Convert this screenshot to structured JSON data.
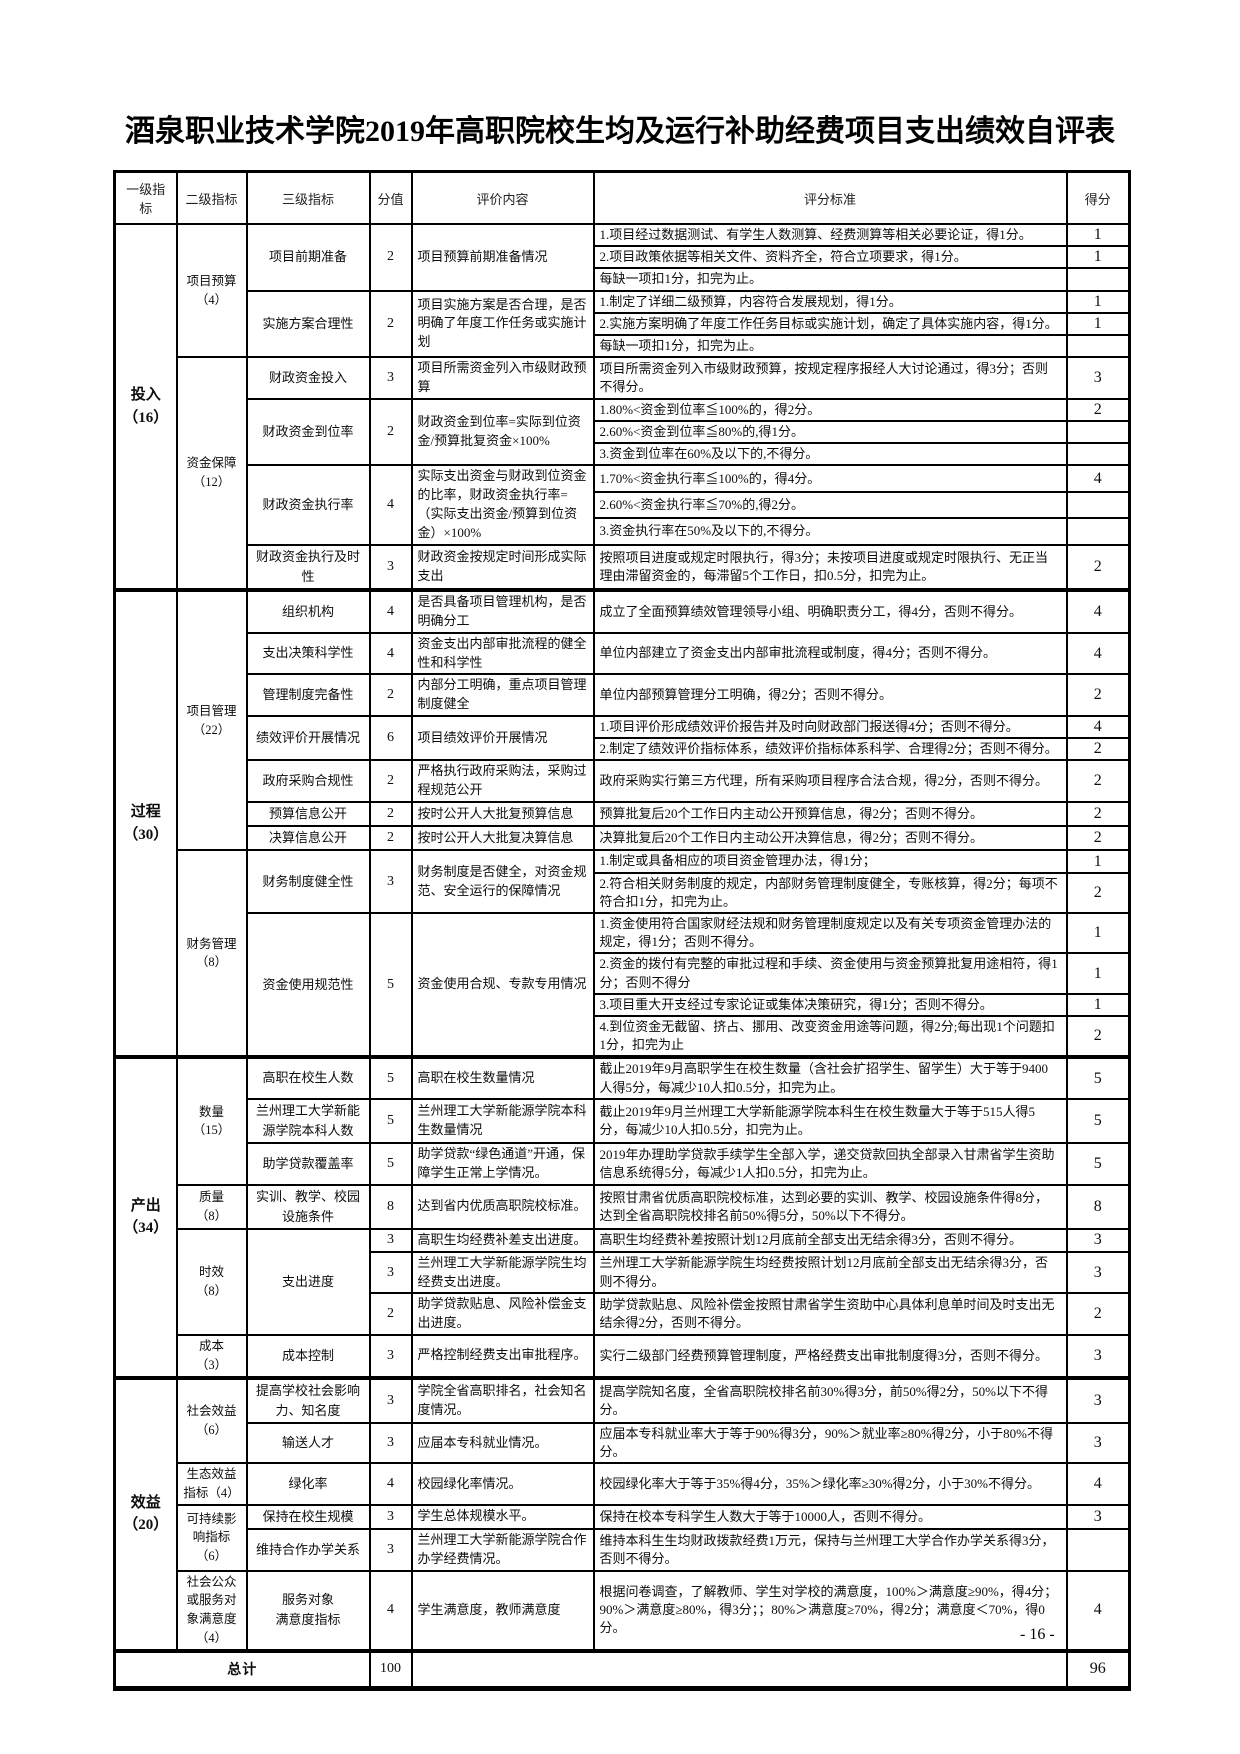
{
  "page": {
    "title": "酒泉职业技术学院2019年高职院校生均及运行补助经费项目支出绩效自评表",
    "page_number": "- 16 -"
  },
  "table": {
    "headers": [
      "一级指标",
      "二级指标",
      "三级指标",
      "分值",
      "评价内容",
      "评分标准",
      "得分"
    ],
    "total_score": "96",
    "total_points": "100",
    "rows": [
      {
        "cells": [
          {
            "t": "投入\n（16）",
            "rs": 14,
            "cls": "l1"
          },
          {
            "t": "项目预算\n（4）",
            "rs": 6,
            "cls": "l2"
          },
          {
            "t": "项目前期准备",
            "rs": 3,
            "cls": "l3"
          },
          {
            "t": "2",
            "rs": 3,
            "cls": "val"
          },
          {
            "t": "项目预算前期准备情况",
            "rs": 3,
            "cls": "content"
          },
          {
            "t": "1.项目经过数据测试、有学生人数测算、经费测算等相关必要论证，得1分。",
            "cls": "std"
          },
          {
            "t": "1",
            "cls": "score"
          }
        ]
      },
      {
        "cells": [
          {
            "t": "2.项目政策依据等相关文件、资料齐全，符合立项要求，得1分。",
            "cls": "std"
          },
          {
            "t": "1",
            "cls": "score"
          }
        ]
      },
      {
        "cells": [
          {
            "t": "每缺一项扣1分，扣完为止。",
            "cls": "std"
          },
          {
            "t": "",
            "cls": "score"
          }
        ]
      },
      {
        "cells": [
          {
            "t": "实施方案合理性",
            "rs": 3,
            "cls": "l3"
          },
          {
            "t": "2",
            "rs": 3,
            "cls": "val"
          },
          {
            "t": "项目实施方案是否合理，是否明确了年度工作任务或实施计划",
            "rs": 3,
            "cls": "content"
          },
          {
            "t": "1.制定了详细二级预算，内容符合发展规划，得1分。",
            "cls": "std"
          },
          {
            "t": "1",
            "cls": "score"
          }
        ]
      },
      {
        "cells": [
          {
            "t": "2.实施方案明确了年度工作任务目标或实施计划，确定了具体实施内容，得1分。",
            "cls": "std"
          },
          {
            "t": "1",
            "cls": "score"
          }
        ]
      },
      {
        "cells": [
          {
            "t": "每缺一项扣1分，扣完为止。",
            "cls": "std"
          },
          {
            "t": "",
            "cls": "score"
          }
        ]
      },
      {
        "cells": [
          {
            "t": "资金保障\n（12）",
            "rs": 8,
            "cls": "l2"
          },
          {
            "t": "财政资金投入",
            "cls": "l3"
          },
          {
            "t": "3",
            "cls": "val"
          },
          {
            "t": "项目所需资金列入市级财政预算",
            "cls": "content"
          },
          {
            "t": "项目所需资金列入市级财政预算，按规定程序报经人大讨论通过，得3分；否则不得分。",
            "cls": "std"
          },
          {
            "t": "3",
            "cls": "score"
          }
        ]
      },
      {
        "cells": [
          {
            "t": "财政资金到位率",
            "rs": 3,
            "cls": "l3"
          },
          {
            "t": "2",
            "rs": 3,
            "cls": "val"
          },
          {
            "t": "财政资金到位率=实际到位资金/预算批复资金×100%",
            "rs": 3,
            "cls": "content"
          },
          {
            "t": "1.80%<资金到位率≦100%的，得2分。",
            "cls": "std"
          },
          {
            "t": "2",
            "cls": "score"
          }
        ]
      },
      {
        "cells": [
          {
            "t": "2.60%<资金到位率≦80%的,得1分。",
            "cls": "std"
          },
          {
            "t": "",
            "cls": "score"
          }
        ]
      },
      {
        "cells": [
          {
            "t": "3.资金到位率在60%及以下的,不得分。",
            "cls": "std"
          },
          {
            "t": "",
            "cls": "score"
          }
        ]
      },
      {
        "cells": [
          {
            "t": "财政资金执行率",
            "rs": 3,
            "cls": "l3"
          },
          {
            "t": "4",
            "rs": 3,
            "cls": "val"
          },
          {
            "t": "实际支出资金与财政到位资金的比率，财政资金执行率=（实际支出资金/预算到位资金）×100%",
            "rs": 3,
            "cls": "content"
          },
          {
            "t": "1.70%<资金执行率≦100%的，得4分。",
            "cls": "std"
          },
          {
            "t": "4",
            "cls": "score"
          }
        ]
      },
      {
        "cells": [
          {
            "t": "2.60%<资金执行率≦70%的,得2分。",
            "cls": "std"
          },
          {
            "t": "",
            "cls": "score"
          }
        ]
      },
      {
        "cells": [
          {
            "t": "3.资金执行率在50%及以下的,不得分。",
            "cls": "std"
          },
          {
            "t": "",
            "cls": "score"
          }
        ]
      },
      {
        "cells": [
          {
            "t": "财政资金执行及时性",
            "cls": "l3"
          },
          {
            "t": "3",
            "cls": "val"
          },
          {
            "t": "财政资金按规定时间形成实际支出",
            "cls": "content"
          },
          {
            "t": "按照项目进度或规定时限执行，得3分；未按项目进度或规定时限执行、无正当理由滞留资金的，每滞留5个工作日，扣0.5分，扣完为止。",
            "cls": "std"
          },
          {
            "t": "2",
            "cls": "score"
          }
        ]
      },
      {
        "sec": true,
        "cells": [
          {
            "t": "过程\n（30）",
            "rs": 14,
            "cls": "l1"
          },
          {
            "t": "项目管理\n（22）",
            "rs": 8,
            "cls": "l2"
          },
          {
            "t": "组织机构",
            "cls": "l3"
          },
          {
            "t": "4",
            "cls": "val"
          },
          {
            "t": "是否具备项目管理机构，是否明确分工",
            "cls": "content"
          },
          {
            "t": "成立了全面预算绩效管理领导小组、明确职责分工，得4分，否则不得分。",
            "cls": "std"
          },
          {
            "t": "4",
            "cls": "score"
          }
        ]
      },
      {
        "cells": [
          {
            "t": "支出决策科学性",
            "cls": "l3"
          },
          {
            "t": "4",
            "cls": "val"
          },
          {
            "t": "资金支出内部审批流程的健全性和科学性",
            "cls": "content"
          },
          {
            "t": "单位内部建立了资金支出内部审批流程或制度，得4分；否则不得分。",
            "cls": "std"
          },
          {
            "t": "4",
            "cls": "score"
          }
        ]
      },
      {
        "cells": [
          {
            "t": "管理制度完备性",
            "cls": "l3"
          },
          {
            "t": "2",
            "cls": "val"
          },
          {
            "t": "内部分工明确，重点项目管理制度健全",
            "cls": "content"
          },
          {
            "t": "单位内部预算管理分工明确，得2分；否则不得分。",
            "cls": "std"
          },
          {
            "t": "2",
            "cls": "score"
          }
        ]
      },
      {
        "cells": [
          {
            "t": "绩效评价开展情况",
            "rs": 2,
            "cls": "l3"
          },
          {
            "t": "6",
            "rs": 2,
            "cls": "val"
          },
          {
            "t": "项目绩效评价开展情况",
            "rs": 2,
            "cls": "content"
          },
          {
            "t": "1.项目评价形成绩效评价报告并及时向财政部门报送得4分；否则不得分。",
            "cls": "std"
          },
          {
            "t": "4",
            "cls": "score"
          }
        ]
      },
      {
        "cells": [
          {
            "t": "2.制定了绩效评价指标体系，绩效评价指标体系科学、合理得2分；否则不得分。",
            "cls": "std"
          },
          {
            "t": "2",
            "cls": "score"
          }
        ]
      },
      {
        "cells": [
          {
            "t": "政府采购合规性",
            "cls": "l3"
          },
          {
            "t": "2",
            "cls": "val"
          },
          {
            "t": "严格执行政府采购法，采购过程规范公开",
            "cls": "content"
          },
          {
            "t": "政府采购实行第三方代理，所有采购项目程序合法合规，得2分，否则不得分。",
            "cls": "std"
          },
          {
            "t": "2",
            "cls": "score"
          }
        ]
      },
      {
        "cells": [
          {
            "t": "预算信息公开",
            "cls": "l3"
          },
          {
            "t": "2",
            "cls": "val"
          },
          {
            "t": "按时公开人大批复预算信息",
            "cls": "content"
          },
          {
            "t": "预算批复后20个工作日内主动公开预算信息，得2分；否则不得分。",
            "cls": "std"
          },
          {
            "t": "2",
            "cls": "score"
          }
        ]
      },
      {
        "cells": [
          {
            "t": "决算信息公开",
            "cls": "l3"
          },
          {
            "t": "2",
            "cls": "val"
          },
          {
            "t": "按时公开人大批复决算信息",
            "cls": "content"
          },
          {
            "t": "决算批复后20个工作日内主动公开决算信息，得2分；否则不得分。",
            "cls": "std"
          },
          {
            "t": "2",
            "cls": "score"
          }
        ]
      },
      {
        "cells": [
          {
            "t": "财务管理（8）",
            "rs": 6,
            "cls": "l2"
          },
          {
            "t": "财务制度健全性",
            "rs": 2,
            "cls": "l3"
          },
          {
            "t": "3",
            "rs": 2,
            "cls": "val"
          },
          {
            "t": "财务制度是否健全，对资金规范、安全运行的保障情况",
            "rs": 2,
            "cls": "content"
          },
          {
            "t": "1.制定或具备相应的项目资金管理办法，得1分；",
            "cls": "std"
          },
          {
            "t": "1",
            "cls": "score"
          }
        ]
      },
      {
        "cells": [
          {
            "t": "2.符合相关财务制度的规定，内部财务管理制度健全，专账核算，得2分；每项不符合扣1分，扣完为止。",
            "cls": "std"
          },
          {
            "t": "2",
            "cls": "score"
          }
        ]
      },
      {
        "cells": [
          {
            "t": "资金使用规范性",
            "rs": 4,
            "cls": "l3"
          },
          {
            "t": "5",
            "rs": 4,
            "cls": "val"
          },
          {
            "t": "资金使用合规、专款专用情况",
            "rs": 4,
            "cls": "content"
          },
          {
            "t": "1.资金使用符合国家财经法规和财务管理制度规定以及有关专项资金管理办法的规定，得1分；否则不得分。",
            "cls": "std"
          },
          {
            "t": "1",
            "cls": "score"
          }
        ]
      },
      {
        "cells": [
          {
            "t": "2.资金的拨付有完整的审批过程和手续、资金使用与资金预算批复用途相符，得1分；否则不得分",
            "cls": "std"
          },
          {
            "t": "1",
            "cls": "score"
          }
        ]
      },
      {
        "cells": [
          {
            "t": "3.项目重大开支经过专家论证或集体决策研究，得1分；否则不得分。",
            "cls": "std"
          },
          {
            "t": "1",
            "cls": "score"
          }
        ]
      },
      {
        "cells": [
          {
            "t": "4.到位资金无截留、挤占、挪用、改变资金用途等问题，得2分;每出现1个问题扣1分，扣完为止",
            "cls": "std"
          },
          {
            "t": "2",
            "cls": "score"
          }
        ]
      },
      {
        "sec": true,
        "cells": [
          {
            "t": "产出\n（34）",
            "rs": 8,
            "cls": "l1"
          },
          {
            "t": "数量\n（15）",
            "rs": 3,
            "cls": "l2"
          },
          {
            "t": "高职在校生人数",
            "cls": "l3"
          },
          {
            "t": "5",
            "cls": "val"
          },
          {
            "t": "高职在校生数量情况",
            "cls": "content"
          },
          {
            "t": "截止2019年9月高职学生在校生数量（含社会扩招学生、留学生）大于等于9400人得5分，每减少10人扣0.5分，扣完为止。",
            "cls": "std"
          },
          {
            "t": "5",
            "cls": "score"
          }
        ]
      },
      {
        "cells": [
          {
            "t": "兰州理工大学新能源学院本科人数",
            "cls": "l3"
          },
          {
            "t": "5",
            "cls": "val"
          },
          {
            "t": "兰州理工大学新能源学院本科生数量情况",
            "cls": "content"
          },
          {
            "t": "截止2019年9月兰州理工大学新能源学院本科生在校生数量大于等于515人得5分，每减少10人扣0.5分，扣完为止。",
            "cls": "std"
          },
          {
            "t": "5",
            "cls": "score"
          }
        ]
      },
      {
        "cells": [
          {
            "t": "助学贷款覆盖率",
            "cls": "l3"
          },
          {
            "t": "5",
            "cls": "val"
          },
          {
            "t": "助学贷款“绿色通道”开通，保障学生正常上学情况。",
            "cls": "content"
          },
          {
            "t": "2019年办理助学贷款手续学生全部入学，递交贷款回执全部录入甘肃省学生资助信息系统得5分，每减少1人扣0.5分，扣完为止。",
            "cls": "std"
          },
          {
            "t": "5",
            "cls": "score"
          }
        ]
      },
      {
        "cells": [
          {
            "t": "质量\n（8）",
            "cls": "l2"
          },
          {
            "t": "实训、教学、校园设施条件",
            "cls": "l3"
          },
          {
            "t": "8",
            "cls": "val"
          },
          {
            "t": "达到省内优质高职院校标准。",
            "cls": "content"
          },
          {
            "t": "按照甘肃省优质高职院校标准，达到必要的实训、教学、校园设施条件得8分，达到全省高职院校排名前50%得5分，50%以下不得分。",
            "cls": "std"
          },
          {
            "t": "8",
            "cls": "score"
          }
        ]
      },
      {
        "cells": [
          {
            "t": "时效\n（8）",
            "rs": 3,
            "cls": "l2"
          },
          {
            "t": "支出进度",
            "rs": 3,
            "cls": "l3"
          },
          {
            "t": "3",
            "cls": "val"
          },
          {
            "t": "高职生均经费补差支出进度。",
            "cls": "content"
          },
          {
            "t": "高职生均经费补差按照计划12月底前全部支出无结余得3分，否则不得分。",
            "cls": "std"
          },
          {
            "t": "3",
            "cls": "score"
          }
        ]
      },
      {
        "cells": [
          {
            "t": "3",
            "cls": "val"
          },
          {
            "t": "兰州理工大学新能源学院生均经费支出进度。",
            "cls": "content"
          },
          {
            "t": "兰州理工大学新能源学院生均经费按照计划12月底前全部支出无结余得3分，否则不得分。",
            "cls": "std"
          },
          {
            "t": "3",
            "cls": "score"
          }
        ]
      },
      {
        "cells": [
          {
            "t": "2",
            "cls": "val"
          },
          {
            "t": "助学贷款贴息、风险补偿金支出进度。",
            "cls": "content"
          },
          {
            "t": "助学贷款贴息、风险补偿金按照甘肃省学生资助中心具体利息单时间及时支出无结余得2分，否则不得分。",
            "cls": "std"
          },
          {
            "t": "2",
            "cls": "score"
          }
        ]
      },
      {
        "cells": [
          {
            "t": "成本\n（3）",
            "cls": "l2"
          },
          {
            "t": "成本控制",
            "cls": "l3"
          },
          {
            "t": "3",
            "cls": "val"
          },
          {
            "t": "严格控制经费支出审批程序。",
            "cls": "content"
          },
          {
            "t": "实行二级部门经费预算管理制度，严格经费支出审批制度得3分，否则不得分。",
            "cls": "std"
          },
          {
            "t": "3",
            "cls": "score"
          }
        ]
      },
      {
        "sec": true,
        "cells": [
          {
            "t": "效益\n（20）",
            "rs": 6,
            "cls": "l1"
          },
          {
            "t": "社会效益\n（6）",
            "rs": 2,
            "cls": "l2"
          },
          {
            "t": "提高学校社会影响力、知名度",
            "cls": "l3"
          },
          {
            "t": "3",
            "cls": "val"
          },
          {
            "t": "学院全省高职排名，社会知名度情况。",
            "cls": "content"
          },
          {
            "t": "提高学院知名度，全省高职院校排名前30%得3分，前50%得2分，50%以下不得分。",
            "cls": "std"
          },
          {
            "t": "3",
            "cls": "score"
          }
        ]
      },
      {
        "cells": [
          {
            "t": "输送人才",
            "cls": "l3"
          },
          {
            "t": "3",
            "cls": "val"
          },
          {
            "t": "应届本专科就业情况。",
            "cls": "content"
          },
          {
            "t": "应届本专科就业率大于等于90%得3分，90%＞就业率≥80%得2分，小于80%不得分。",
            "cls": "std"
          },
          {
            "t": "3",
            "cls": "score"
          }
        ]
      },
      {
        "cells": [
          {
            "t": "生态效益指标（4）",
            "cls": "l2"
          },
          {
            "t": "绿化率",
            "cls": "l3"
          },
          {
            "t": "4",
            "cls": "val"
          },
          {
            "t": "校园绿化率情况。",
            "cls": "content"
          },
          {
            "t": "校园绿化率大于等于35%得4分，35%＞绿化率≥30%得2分，小于30%不得分。",
            "cls": "std"
          },
          {
            "t": "4",
            "cls": "score"
          }
        ]
      },
      {
        "cells": [
          {
            "t": "可持续影响指标（6）",
            "rs": 2,
            "cls": "l2"
          },
          {
            "t": "保持在校生规模",
            "cls": "l3"
          },
          {
            "t": "3",
            "cls": "val"
          },
          {
            "t": "学生总体规模水平。",
            "cls": "content"
          },
          {
            "t": "保持在校本专科学生人数大于等于10000人，否则不得分。",
            "cls": "std"
          },
          {
            "t": "3",
            "cls": "score"
          }
        ]
      },
      {
        "cells": [
          {
            "t": "维持合作办学关系",
            "cls": "l3"
          },
          {
            "t": "3",
            "cls": "val"
          },
          {
            "t": "兰州理工大学新能源学院合作办学经费情况。",
            "cls": "content"
          },
          {
            "t": "维持本科生生均财政拨款经费1万元，保持与兰州理工大学合作办学关系得3分，否则不得分。",
            "cls": "std"
          },
          {
            "t": "",
            "cls": "score"
          }
        ]
      },
      {
        "cells": [
          {
            "t": "社会公众或服务对象满意度（4）",
            "cls": "l2"
          },
          {
            "t": "服务对象\n满意度指标",
            "cls": "l3"
          },
          {
            "t": "4",
            "cls": "val"
          },
          {
            "t": "学生满意度，教师满意度",
            "cls": "content"
          },
          {
            "t": "根据问卷调查，了解教师、学生对学校的满意度，100%＞满意度≥90%，得4分；90%＞满意度≥80%，得3分；；80%＞满意度≥70%，得2分；满意度＜70%，得0分。",
            "cls": "std"
          },
          {
            "t": "4",
            "cls": "score"
          }
        ]
      },
      {
        "sec": true,
        "total": true,
        "cells": [
          {
            "t": "总计",
            "cs": 3,
            "cls": "total-label"
          },
          {
            "t": "100",
            "cls": "val"
          },
          {
            "t": "",
            "cs": 2,
            "cls": "std"
          },
          {
            "t": "96",
            "cls": "score"
          }
        ]
      }
    ]
  }
}
